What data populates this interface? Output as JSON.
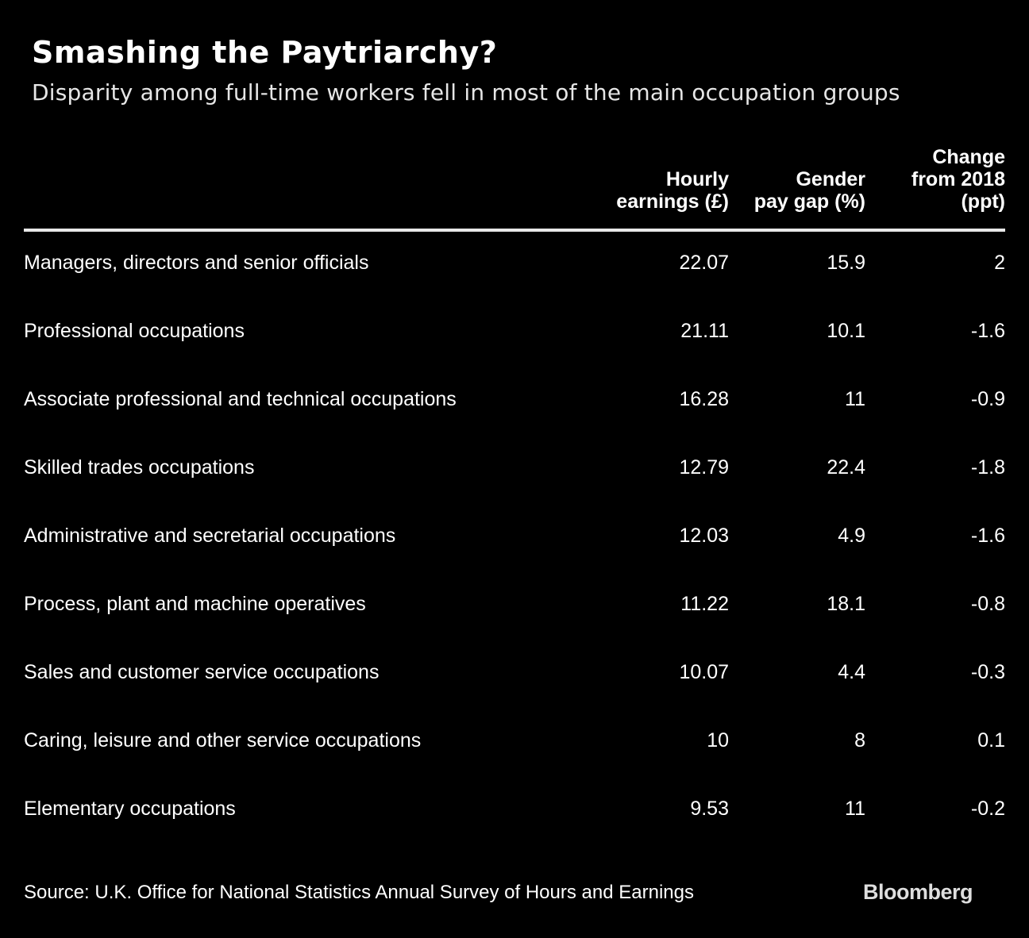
{
  "header": {
    "title": "Smashing the Paytriarchy?",
    "subtitle": "Disparity among full-time workers fell in most of the main occupation groups"
  },
  "footer": {
    "source": "Source: U.K. Office for National Statistics Annual Survey of Hours and Earnings",
    "logo": "Bloomberg"
  },
  "colors": {
    "background": "#000000",
    "text": "#ffffff",
    "rule": "#e8e8e8"
  },
  "chart_data": {
    "type": "table",
    "title": "Smashing the Paytriarchy?",
    "subtitle": "Disparity among full-time workers fell in most of the main occupation groups",
    "columns": [
      "",
      "Hourly\nearnings (£)",
      "Gender\npay gap (%)",
      "Change\nfrom 2018\n(ppt)"
    ],
    "rows": [
      {
        "occupation": "Managers, directors and senior officials",
        "hourly_earnings": "22.07",
        "gender_pay_gap": "15.9",
        "change_from_2018": "2"
      },
      {
        "occupation": "Professional occupations",
        "hourly_earnings": "21.11",
        "gender_pay_gap": "10.1",
        "change_from_2018": "-1.6"
      },
      {
        "occupation": "Associate professional and technical occupations",
        "hourly_earnings": "16.28",
        "gender_pay_gap": "11",
        "change_from_2018": "-0.9"
      },
      {
        "occupation": "Skilled trades occupations",
        "hourly_earnings": "12.79",
        "gender_pay_gap": "22.4",
        "change_from_2018": "-1.8"
      },
      {
        "occupation": "Administrative and secretarial occupations",
        "hourly_earnings": "12.03",
        "gender_pay_gap": "4.9",
        "change_from_2018": "-1.6"
      },
      {
        "occupation": "Process, plant and machine operatives",
        "hourly_earnings": "11.22",
        "gender_pay_gap": "18.1",
        "change_from_2018": "-0.8"
      },
      {
        "occupation": "Sales and customer service occupations",
        "hourly_earnings": "10.07",
        "gender_pay_gap": "4.4",
        "change_from_2018": "-0.3"
      },
      {
        "occupation": "Caring, leisure and other service occupations",
        "hourly_earnings": "10",
        "gender_pay_gap": "8",
        "change_from_2018": "0.1"
      },
      {
        "occupation": "Elementary occupations",
        "hourly_earnings": "9.53",
        "gender_pay_gap": "11",
        "change_from_2018": "-0.2"
      }
    ],
    "source": "Source: U.K. Office for National Statistics Annual Survey of Hours and Earnings"
  }
}
